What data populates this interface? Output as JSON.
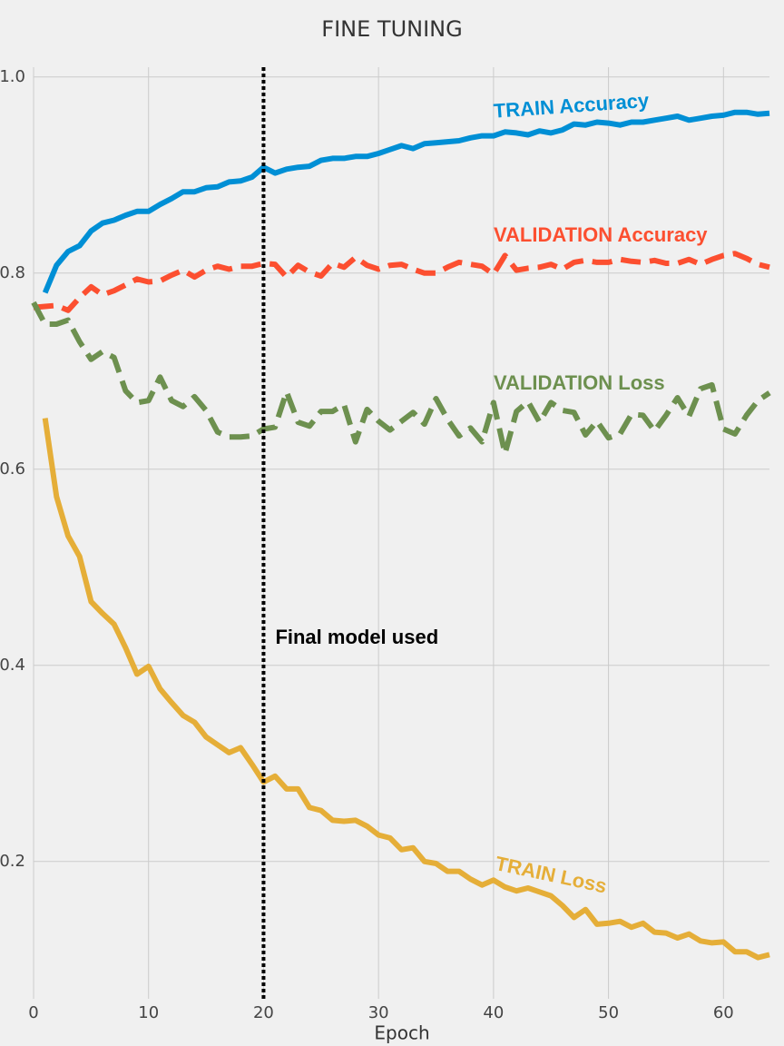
{
  "chart_data": {
    "type": "line",
    "title": "FINE TUNING",
    "x_label": "Epoch",
    "x": [
      0,
      1,
      2,
      3,
      4,
      5,
      6,
      7,
      8,
      9,
      10,
      11,
      12,
      13,
      14,
      15,
      16,
      17,
      18,
      19,
      20,
      21,
      22,
      23,
      24,
      25,
      26,
      27,
      28,
      29,
      30,
      31,
      32,
      33,
      34,
      35,
      36,
      37,
      38,
      39,
      40,
      41,
      42,
      43,
      44,
      45,
      46,
      47,
      48,
      49,
      50,
      51,
      52,
      53,
      54,
      55,
      56,
      57,
      58,
      59,
      60,
      61,
      62,
      63,
      64
    ],
    "series": [
      {
        "name": "TRAIN Accuracy",
        "color": "#008fd5",
        "dashed": false,
        "values": [
          null,
          0.78,
          0.808,
          0.822,
          0.828,
          0.843,
          0.851,
          0.854,
          0.859,
          0.863,
          0.863,
          0.87,
          0.876,
          0.883,
          0.883,
          0.887,
          0.888,
          0.893,
          0.894,
          0.898,
          0.908,
          0.902,
          0.906,
          0.908,
          0.909,
          0.915,
          0.917,
          0.917,
          0.919,
          0.919,
          0.922,
          0.926,
          0.93,
          0.927,
          0.932,
          0.933,
          0.934,
          0.935,
          0.938,
          0.94,
          0.94,
          0.944,
          0.943,
          0.941,
          0.945,
          0.943,
          0.946,
          0.952,
          0.951,
          0.954,
          0.953,
          0.951,
          0.954,
          0.954,
          0.956,
          0.958,
          0.96,
          0.956,
          0.958,
          0.96,
          0.961,
          0.964,
          0.964,
          0.962,
          0.963
        ]
      },
      {
        "name": "VALIDATION Accuracy",
        "color": "#fc4f30",
        "dashed": true,
        "values": [
          0.765,
          0.766,
          0.767,
          0.762,
          0.775,
          0.786,
          0.778,
          0.782,
          0.788,
          0.794,
          0.791,
          0.792,
          0.798,
          0.803,
          0.796,
          0.803,
          0.807,
          0.804,
          0.807,
          0.807,
          0.81,
          0.809,
          0.796,
          0.808,
          0.801,
          0.797,
          0.81,
          0.806,
          0.816,
          0.808,
          0.804,
          0.808,
          0.809,
          0.804,
          0.8,
          0.8,
          0.806,
          0.811,
          0.809,
          0.807,
          0.799,
          0.818,
          0.803,
          0.805,
          0.806,
          0.809,
          0.804,
          0.811,
          0.813,
          0.811,
          0.811,
          0.814,
          0.812,
          0.811,
          0.813,
          0.81,
          0.81,
          0.814,
          0.809,
          0.814,
          0.818,
          0.82,
          0.815,
          0.809,
          0.806
        ]
      },
      {
        "name": "VALIDATION Loss",
        "color": "#6d904f",
        "dashed": true,
        "values": [
          0.77,
          0.748,
          0.748,
          0.752,
          0.73,
          0.712,
          0.72,
          0.714,
          0.68,
          0.668,
          0.67,
          0.694,
          0.67,
          0.664,
          0.674,
          0.66,
          0.638,
          0.633,
          0.633,
          0.634,
          0.641,
          0.643,
          0.679,
          0.648,
          0.644,
          0.659,
          0.659,
          0.666,
          0.628,
          0.661,
          0.649,
          0.64,
          0.649,
          0.658,
          0.646,
          0.672,
          0.651,
          0.634,
          0.642,
          0.628,
          0.668,
          0.616,
          0.659,
          0.669,
          0.648,
          0.668,
          0.66,
          0.658,
          0.635,
          0.649,
          0.632,
          0.636,
          0.656,
          0.655,
          0.639,
          0.655,
          0.673,
          0.654,
          0.682,
          0.686,
          0.641,
          0.636,
          0.655,
          0.67,
          0.678
        ]
      },
      {
        "name": "TRAIN Loss",
        "color": "#e5ae38",
        "dashed": false,
        "values": [
          null,
          0.652,
          0.572,
          0.532,
          0.511,
          0.465,
          0.453,
          0.442,
          0.418,
          0.391,
          0.399,
          0.376,
          0.362,
          0.349,
          0.342,
          0.327,
          0.319,
          0.311,
          0.316,
          0.299,
          0.281,
          0.287,
          0.274,
          0.274,
          0.255,
          0.252,
          0.242,
          0.241,
          0.242,
          0.236,
          0.227,
          0.224,
          0.212,
          0.214,
          0.2,
          0.198,
          0.19,
          0.19,
          0.182,
          0.176,
          0.181,
          0.174,
          0.17,
          0.173,
          0.169,
          0.165,
          0.155,
          0.143,
          0.151,
          0.136,
          0.137,
          0.139,
          0.133,
          0.137,
          0.128,
          0.127,
          0.122,
          0.126,
          0.119,
          0.117,
          0.118,
          0.108,
          0.108,
          0.102,
          0.105
        ]
      }
    ],
    "xlim": [
      0,
      64
    ],
    "xticks": [
      0,
      10,
      20,
      30,
      40,
      50,
      60
    ],
    "ylim": [
      0.06,
      1.01
    ],
    "yticks": [
      0.2,
      0.4,
      0.6,
      0.8,
      {
        "value": 1,
        "label": "1.0"
      }
    ],
    "grid": true,
    "marker_line": {
      "x": 20,
      "label": "Final model used"
    }
  }
}
